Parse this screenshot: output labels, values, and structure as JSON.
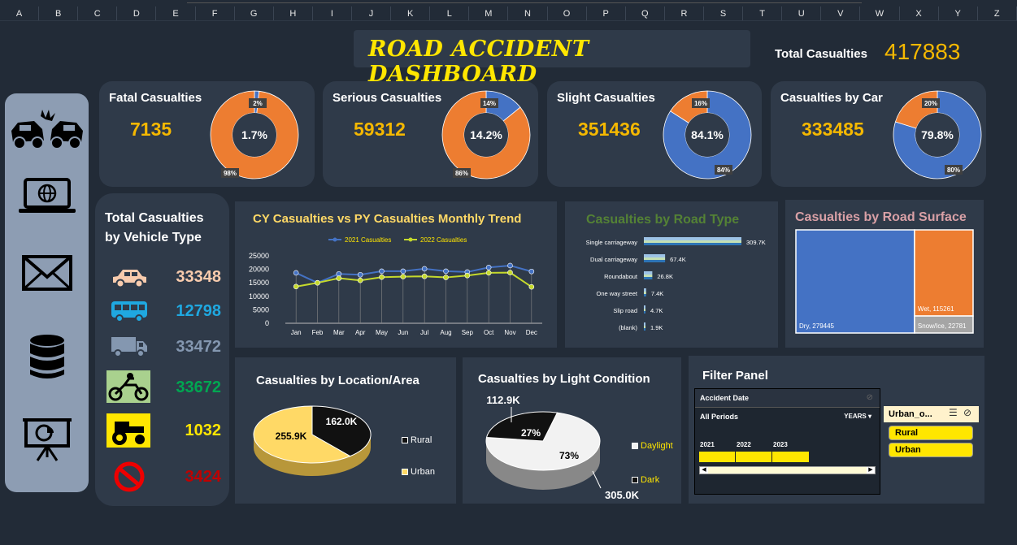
{
  "column_headers": [
    "A",
    "B",
    "C",
    "D",
    "E",
    "F",
    "G",
    "H",
    "I",
    "J",
    "K",
    "L",
    "M",
    "N",
    "O",
    "P",
    "Q",
    "R",
    "S",
    "T",
    "U",
    "V",
    "W",
    "X",
    "Y",
    "Z"
  ],
  "header": {
    "title": "ROAD ACCIDENT DASHBOARD",
    "total_label": "Total Casualties",
    "total_value": "417883"
  },
  "sidebar": {
    "icons": [
      "car-crash-icon",
      "laptop-globe-icon",
      "mail-icon",
      "database-icon",
      "presentation-icon"
    ]
  },
  "kpis": [
    {
      "title": "Fatal Casualties",
      "value": "7135",
      "center": "1.7%",
      "small_label": "2%",
      "big_label": "98%",
      "share": 0.017
    },
    {
      "title": "Serious Casualties",
      "value": "59312",
      "center": "14.2%",
      "small_label": "14%",
      "big_label": "86%",
      "share": 0.142
    },
    {
      "title": "Slight Casualties",
      "value": "351436",
      "center": "84.1%",
      "small_label": "16%",
      "big_label": "84%",
      "share": 0.841
    },
    {
      "title": "Casualties by Car",
      "value": "333485",
      "center": "79.8%",
      "small_label": "20%",
      "big_label": "80%",
      "share": 0.798
    }
  ],
  "colors": {
    "orange": "#ed7d31",
    "blue": "#4472c4",
    "yellow": "#f5b800",
    "title_yellow": "#ffe600"
  },
  "vehicle": {
    "title_line1": "Total Casualties",
    "title_line2": "by  Vehicle Type",
    "rows": [
      {
        "icon": "car-icon",
        "value": "33348",
        "color": "#f8cbad"
      },
      {
        "icon": "bus-icon",
        "value": "12798",
        "color": "#1fa8e0"
      },
      {
        "icon": "truck-icon",
        "value": "33472",
        "color": "#8497b0"
      },
      {
        "icon": "motorcycle-icon",
        "value": "33672",
        "color": "#00a651"
      },
      {
        "icon": "tractor-icon",
        "value": "1032",
        "color": "#ffe600"
      },
      {
        "icon": "no-entry-icon",
        "value": "3424",
        "color": "#c00000"
      }
    ]
  },
  "chart_data": [
    {
      "type": "line",
      "title": "CY Casualties vs PY Casualties Monthly Trend",
      "categories": [
        "Jan",
        "Feb",
        "Mar",
        "Apr",
        "May",
        "Jun",
        "Jul",
        "Aug",
        "Sep",
        "Oct",
        "Nov",
        "Dec"
      ],
      "series": [
        {
          "name": "2021 Casualties",
          "color": "#4472c4",
          "values": [
            18700,
            15000,
            18300,
            18000,
            19300,
            19300,
            20200,
            19300,
            19000,
            20700,
            21400,
            19200
          ]
        },
        {
          "name": "2022 Casualties",
          "color": "#c5d92c",
          "values": [
            13600,
            15000,
            16700,
            15900,
            17100,
            17300,
            17400,
            17000,
            17700,
            18700,
            18800,
            13500
          ]
        }
      ],
      "y_ticks": [
        "25000",
        "20000",
        "15000",
        "10000",
        "5000",
        "0"
      ],
      "ylim": [
        0,
        25000
      ],
      "legend": "top"
    },
    {
      "type": "bar",
      "title": "Casualties by Road Type",
      "categories": [
        "Single carriageway",
        "Dual carriageway",
        "Roundabout",
        "One way street",
        "Slip road",
        "(blank)"
      ],
      "values": [
        309.7,
        67.4,
        26.8,
        7.4,
        4.7,
        1.9
      ],
      "data_labels": [
        "309.7K",
        "67.4K",
        "26.8K",
        "7.4K",
        "4.7K",
        "1.9K"
      ]
    },
    {
      "type": "treemap",
      "title": "Casualties by Road Surface",
      "items": [
        {
          "label": "Dry, 279445",
          "value": 279445,
          "color": "#4472c4"
        },
        {
          "label": "Wet, 115261",
          "value": 115261,
          "color": "#ed7d31"
        },
        {
          "label": "Snow/Ice, 22781",
          "value": 22781,
          "color": "#a5a5a5"
        }
      ]
    },
    {
      "type": "pie",
      "title": "Casualties by Location/Area",
      "slices": [
        {
          "name": "Rural",
          "value": 162.0,
          "label": "162.0K",
          "color": "#111111"
        },
        {
          "name": "Urban",
          "value": 255.9,
          "label": "255.9K",
          "color": "#ffd966"
        }
      ]
    },
    {
      "type": "pie",
      "title": "Casualties by Light Condition",
      "slices": [
        {
          "name": "Daylight",
          "value": 305.0,
          "label": "305.0K",
          "pct": "73%",
          "color": "#f2f2f2"
        },
        {
          "name": "Dark",
          "value": 112.9,
          "label": "112.9K",
          "pct": "27%",
          "color": "#111111"
        }
      ]
    }
  ],
  "filter": {
    "title": "Filter Panel",
    "timeline_title": "Accident Date",
    "all_periods": "All Periods",
    "granularity": "YEARS",
    "years": [
      "2021",
      "2022",
      "2023"
    ],
    "slicer_title": "Urban_o...",
    "slicer_items": [
      "Rural",
      "Urban"
    ]
  }
}
